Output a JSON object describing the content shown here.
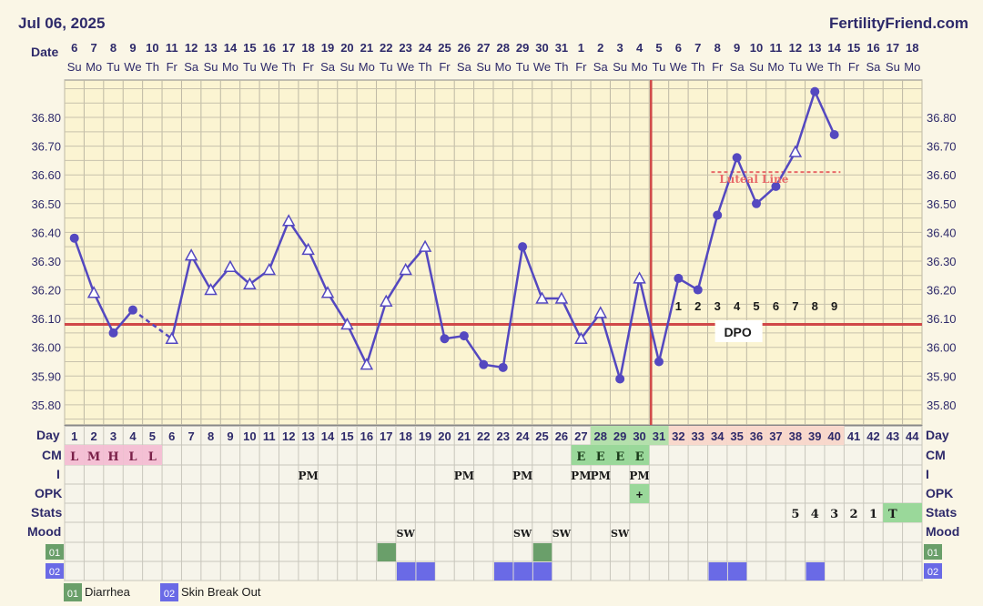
{
  "header": {
    "date": "Jul 06, 2025",
    "site": "FertilityFriend.com"
  },
  "row_labels": {
    "date": "Date",
    "day": "Day",
    "cm": "CM",
    "i": "I",
    "opk": "OPK",
    "stats": "Stats",
    "mood": "Mood"
  },
  "chart_data": {
    "type": "line",
    "title": "",
    "date_numbers": [
      "6",
      "7",
      "8",
      "9",
      "10",
      "11",
      "12",
      "13",
      "14",
      "15",
      "16",
      "17",
      "18",
      "19",
      "20",
      "21",
      "22",
      "23",
      "24",
      "25",
      "26",
      "27",
      "28",
      "29",
      "30",
      "31",
      "1",
      "2",
      "3",
      "4",
      "5",
      "6",
      "7",
      "8",
      "9",
      "10",
      "11",
      "12",
      "13",
      "14",
      "15",
      "16",
      "17",
      "18"
    ],
    "weekdays": [
      "Su",
      "Mo",
      "Tu",
      "We",
      "Th",
      "Fr",
      "Sa",
      "Su",
      "Mo",
      "Tu",
      "We",
      "Th",
      "Fr",
      "Sa",
      "Su",
      "Mo",
      "Tu",
      "We",
      "Th",
      "Fr",
      "Sa",
      "Su",
      "Mo",
      "Tu",
      "We",
      "Th",
      "Fr",
      "Sa",
      "Su",
      "Mo",
      "Tu",
      "We",
      "Th",
      "Fr",
      "Sa",
      "Su",
      "Mo",
      "Tu",
      "We",
      "Th",
      "Fr",
      "Sa",
      "Su",
      "Mo"
    ],
    "cycle_days": [
      "1",
      "2",
      "3",
      "4",
      "5",
      "6",
      "7",
      "8",
      "9",
      "10",
      "11",
      "12",
      "13",
      "14",
      "15",
      "16",
      "17",
      "18",
      "19",
      "20",
      "21",
      "22",
      "23",
      "24",
      "25",
      "26",
      "27",
      "28",
      "29",
      "30",
      "31",
      "32",
      "33",
      "34",
      "35",
      "36",
      "37",
      "38",
      "39",
      "40",
      "41",
      "42",
      "43",
      "44"
    ],
    "y_ticks": [
      "36.80",
      "36.70",
      "36.60",
      "36.50",
      "36.40",
      "36.30",
      "36.20",
      "36.10",
      "36.00",
      "35.90",
      "35.80"
    ],
    "ylim": [
      35.73,
      36.93
    ],
    "temps": [
      {
        "day": 1,
        "value": 36.38,
        "marker": "dot"
      },
      {
        "day": 2,
        "value": 36.19,
        "marker": "tri"
      },
      {
        "day": 3,
        "value": 36.05,
        "marker": "dot"
      },
      {
        "day": 4,
        "value": 36.13,
        "marker": "dot"
      },
      {
        "day": 6,
        "value": 36.03,
        "marker": "tri"
      },
      {
        "day": 7,
        "value": 36.32,
        "marker": "tri"
      },
      {
        "day": 8,
        "value": 36.2,
        "marker": "tri"
      },
      {
        "day": 9,
        "value": 36.28,
        "marker": "tri"
      },
      {
        "day": 10,
        "value": 36.22,
        "marker": "tri"
      },
      {
        "day": 11,
        "value": 36.27,
        "marker": "tri"
      },
      {
        "day": 12,
        "value": 36.44,
        "marker": "tri"
      },
      {
        "day": 13,
        "value": 36.34,
        "marker": "tri"
      },
      {
        "day": 14,
        "value": 36.19,
        "marker": "tri"
      },
      {
        "day": 15,
        "value": 36.08,
        "marker": "tri"
      },
      {
        "day": 16,
        "value": 35.94,
        "marker": "tri"
      },
      {
        "day": 17,
        "value": 36.16,
        "marker": "tri"
      },
      {
        "day": 18,
        "value": 36.27,
        "marker": "tri"
      },
      {
        "day": 19,
        "value": 36.35,
        "marker": "tri"
      },
      {
        "day": 20,
        "value": 36.03,
        "marker": "dot"
      },
      {
        "day": 21,
        "value": 36.04,
        "marker": "dot"
      },
      {
        "day": 22,
        "value": 35.94,
        "marker": "dot"
      },
      {
        "day": 23,
        "value": 35.93,
        "marker": "dot"
      },
      {
        "day": 24,
        "value": 36.35,
        "marker": "dot"
      },
      {
        "day": 25,
        "value": 36.17,
        "marker": "tri"
      },
      {
        "day": 26,
        "value": 36.17,
        "marker": "tri"
      },
      {
        "day": 27,
        "value": 36.03,
        "marker": "tri"
      },
      {
        "day": 28,
        "value": 36.12,
        "marker": "tri"
      },
      {
        "day": 29,
        "value": 35.89,
        "marker": "dot"
      },
      {
        "day": 30,
        "value": 36.24,
        "marker": "tri"
      },
      {
        "day": 31,
        "value": 35.95,
        "marker": "dot"
      },
      {
        "day": 32,
        "value": 36.24,
        "marker": "dot"
      },
      {
        "day": 33,
        "value": 36.2,
        "marker": "dot"
      },
      {
        "day": 34,
        "value": 36.46,
        "marker": "dot"
      },
      {
        "day": 35,
        "value": 36.66,
        "marker": "dot"
      },
      {
        "day": 36,
        "value": 36.5,
        "marker": "dot"
      },
      {
        "day": 37,
        "value": 36.56,
        "marker": "dot"
      },
      {
        "day": 38,
        "value": 36.68,
        "marker": "tri"
      },
      {
        "day": 39,
        "value": 36.89,
        "marker": "dot"
      },
      {
        "day": 40,
        "value": 36.74,
        "marker": "dot"
      }
    ],
    "coverline": 36.08,
    "ovulation_day": 31,
    "luteal_line": {
      "label": "Luteal Line",
      "value": 36.61,
      "from_day": 34,
      "to_day": 40
    },
    "dpo_numbers": [
      "1",
      "2",
      "3",
      "4",
      "5",
      "6",
      "7",
      "8",
      "9"
    ],
    "dpo_label": "DPO",
    "cm": [
      {
        "day": 1,
        "value": "L"
      },
      {
        "day": 2,
        "value": "M"
      },
      {
        "day": 3,
        "value": "H"
      },
      {
        "day": 4,
        "value": "L"
      },
      {
        "day": 5,
        "value": "L"
      },
      {
        "day": 27,
        "value": "E"
      },
      {
        "day": 28,
        "value": "E"
      },
      {
        "day": 29,
        "value": "E"
      },
      {
        "day": 30,
        "value": "E"
      }
    ],
    "intercourse": [
      {
        "day": 13,
        "value": "PM"
      },
      {
        "day": 21,
        "value": "PM"
      },
      {
        "day": 24,
        "value": "PM"
      },
      {
        "day": 27,
        "value": "PM"
      },
      {
        "day": 28,
        "value": "PM"
      },
      {
        "day": 30,
        "value": "PM"
      }
    ],
    "opk": [
      {
        "day": 30,
        "value": "+"
      }
    ],
    "stats": [
      {
        "day": 38,
        "value": "5"
      },
      {
        "day": 39,
        "value": "4"
      },
      {
        "day": 40,
        "value": "3"
      },
      {
        "day": 41,
        "value": "2"
      },
      {
        "day": 42,
        "value": "1"
      },
      {
        "day": 43,
        "value": "T"
      }
    ],
    "mood": [
      {
        "day": 18,
        "value": "SW"
      },
      {
        "day": 24,
        "value": "SW"
      },
      {
        "day": 26,
        "value": "SW"
      },
      {
        "day": 29,
        "value": "SW"
      }
    ],
    "symptoms": [
      {
        "code": "01",
        "name": "Diarrhea",
        "color": "#6a9f6a",
        "days": [
          17,
          25
        ]
      },
      {
        "code": "02",
        "name": "Skin Break Out",
        "color": "#6a6ae6",
        "days": [
          18,
          19,
          23,
          24,
          25,
          34,
          35,
          39
        ]
      }
    ],
    "colors": {
      "line": "#5448c0",
      "coverline": "#d04848",
      "luteal": "#e86a6a",
      "cm_pink": "#f4c0d4",
      "cm_green": "#9ad89a",
      "green_day": "#b4e0ac",
      "post_ov_day": "#f8d8cc",
      "stats_green": "#9ad89a",
      "label_text": "#2e2a6a"
    }
  }
}
